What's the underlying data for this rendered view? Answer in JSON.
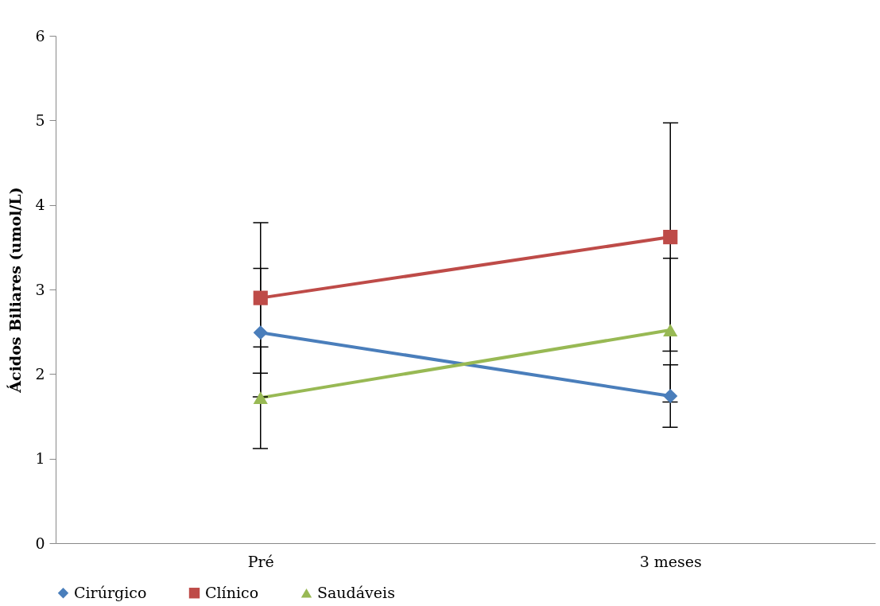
{
  "chart_data": {
    "type": "line",
    "ylabel": "Ácidos Biliares (umol/L)",
    "categories": [
      "Pré",
      "3 meses"
    ],
    "series": [
      {
        "name": "Cirúrgico",
        "color": "#4a7ebb",
        "marker": "diamond",
        "values": [
          2.49,
          1.74
        ],
        "errors": [
          0.76,
          0.37
        ]
      },
      {
        "name": "Clínico",
        "color": "#be4b48",
        "marker": "square",
        "values": [
          2.9,
          3.62
        ],
        "errors": [
          0.89,
          1.35
        ]
      },
      {
        "name": "Saudáveis",
        "color": "#98b954",
        "marker": "triangle",
        "values": [
          1.72,
          2.52
        ],
        "errors": [
          0.6,
          0.85
        ]
      }
    ],
    "ylim": [
      0,
      6
    ],
    "yticks": [
      0,
      1,
      2,
      3,
      4,
      5,
      6
    ],
    "grid": false,
    "legend": "bottom"
  }
}
